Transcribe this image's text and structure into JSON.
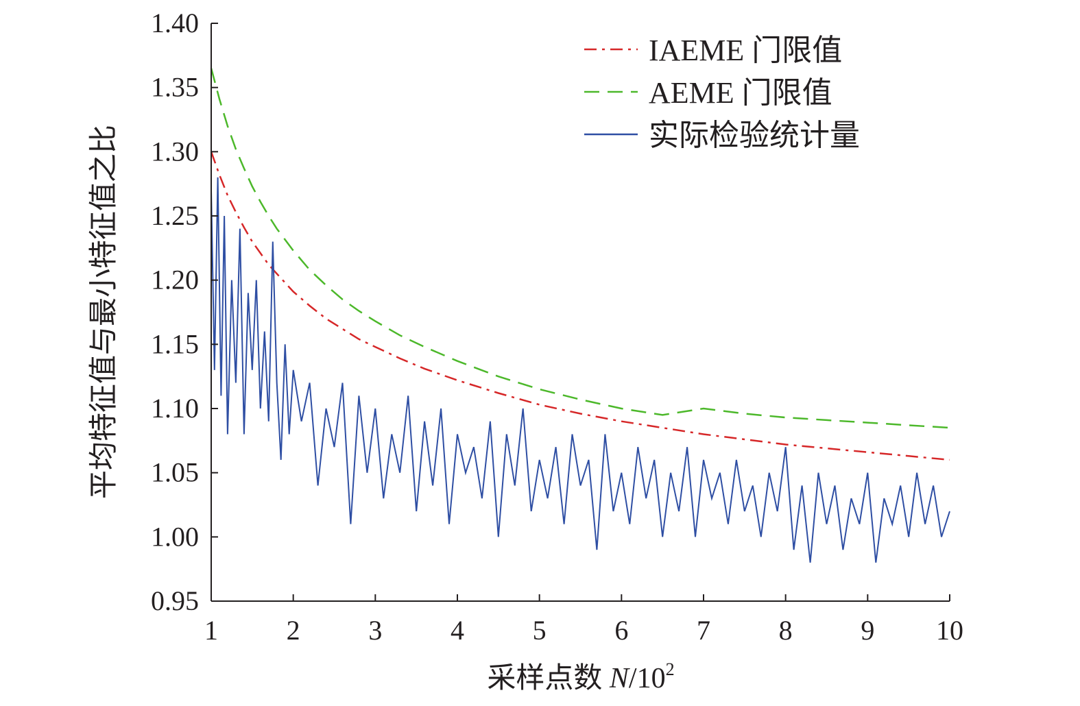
{
  "chart_data": {
    "type": "line",
    "title": "",
    "xlabel_text": "采样点数 ",
    "xlabel_var": "N",
    "xlabel_unit": "/10",
    "xlabel_exp": "2",
    "ylabel": "平均特征值与最小特征值之比",
    "xlim": [
      1,
      10
    ],
    "ylim": [
      0.95,
      1.4
    ],
    "x_ticks": [
      1,
      2,
      3,
      4,
      5,
      6,
      7,
      8,
      9,
      10
    ],
    "x_tick_labels": [
      "1",
      "2",
      "3",
      "4",
      "5",
      "6",
      "7",
      "8",
      "9",
      "10"
    ],
    "y_ticks": [
      0.95,
      1.0,
      1.05,
      1.1,
      1.15,
      1.2,
      1.25,
      1.3,
      1.35,
      1.4
    ],
    "y_tick_labels": [
      "0.95",
      "1.00",
      "1.05",
      "1.10",
      "1.15",
      "1.20",
      "1.25",
      "1.30",
      "1.35",
      "1.40"
    ],
    "grid": false,
    "legend_position": "top-right",
    "series": [
      {
        "name": "IAEME 门限值",
        "color": "#d62728",
        "style": "dash-dot",
        "x": [
          1.0,
          1.1,
          1.2,
          1.3,
          1.4,
          1.5,
          1.6,
          1.7,
          1.8,
          2.0,
          2.2,
          2.4,
          2.6,
          2.8,
          3.0,
          3.3,
          3.6,
          4.0,
          4.5,
          5.0,
          5.5,
          6.0,
          6.5,
          7.0,
          7.5,
          8.0,
          8.5,
          9.0,
          9.5,
          10.0
        ],
        "values": [
          1.3,
          1.282,
          1.266,
          1.253,
          1.241,
          1.23,
          1.221,
          1.212,
          1.205,
          1.191,
          1.18,
          1.17,
          1.162,
          1.154,
          1.148,
          1.139,
          1.131,
          1.122,
          1.112,
          1.103,
          1.096,
          1.09,
          1.085,
          1.08,
          1.076,
          1.072,
          1.069,
          1.066,
          1.063,
          1.06
        ]
      },
      {
        "name": "AEME 门限值",
        "color": "#4cb82a",
        "style": "dashed",
        "x": [
          1.0,
          1.1,
          1.2,
          1.3,
          1.4,
          1.5,
          1.6,
          1.7,
          1.8,
          2.0,
          2.2,
          2.4,
          2.6,
          2.8,
          3.0,
          3.3,
          3.6,
          4.0,
          4.5,
          5.0,
          5.5,
          6.0,
          6.5,
          7.0,
          7.5,
          8.0,
          8.5,
          9.0,
          9.5,
          10.0
        ],
        "values": [
          1.365,
          1.341,
          1.32,
          1.302,
          1.287,
          1.273,
          1.261,
          1.25,
          1.24,
          1.223,
          1.208,
          1.196,
          1.185,
          1.176,
          1.168,
          1.157,
          1.148,
          1.137,
          1.125,
          1.115,
          1.107,
          1.1,
          1.095,
          1.1,
          1.096,
          1.093,
          1.091,
          1.089,
          1.087,
          1.085
        ]
      },
      {
        "name": "实际检验统计量",
        "color": "#2e4ea3",
        "style": "solid",
        "x": [
          1.0,
          1.04,
          1.08,
          1.12,
          1.16,
          1.2,
          1.25,
          1.3,
          1.35,
          1.4,
          1.45,
          1.5,
          1.55,
          1.6,
          1.65,
          1.7,
          1.75,
          1.8,
          1.85,
          1.9,
          1.95,
          2.0,
          2.1,
          2.2,
          2.3,
          2.4,
          2.5,
          2.6,
          2.7,
          2.8,
          2.9,
          3.0,
          3.1,
          3.2,
          3.3,
          3.4,
          3.5,
          3.6,
          3.7,
          3.8,
          3.9,
          4.0,
          4.1,
          4.2,
          4.3,
          4.4,
          4.5,
          4.6,
          4.7,
          4.8,
          4.9,
          5.0,
          5.1,
          5.2,
          5.3,
          5.4,
          5.5,
          5.6,
          5.7,
          5.8,
          5.9,
          6.0,
          6.1,
          6.2,
          6.3,
          6.4,
          6.5,
          6.6,
          6.7,
          6.8,
          6.9,
          7.0,
          7.1,
          7.2,
          7.3,
          7.4,
          7.5,
          7.6,
          7.7,
          7.8,
          7.9,
          8.0,
          8.1,
          8.2,
          8.3,
          8.4,
          8.5,
          8.6,
          8.7,
          8.8,
          8.9,
          9.0,
          9.1,
          9.2,
          9.3,
          9.4,
          9.5,
          9.6,
          9.7,
          9.8,
          9.9,
          10.0
        ],
        "values": [
          1.27,
          1.13,
          1.28,
          1.11,
          1.25,
          1.08,
          1.2,
          1.12,
          1.24,
          1.08,
          1.19,
          1.13,
          1.2,
          1.1,
          1.16,
          1.09,
          1.23,
          1.12,
          1.06,
          1.15,
          1.08,
          1.13,
          1.09,
          1.12,
          1.04,
          1.1,
          1.07,
          1.12,
          1.01,
          1.11,
          1.05,
          1.1,
          1.03,
          1.08,
          1.05,
          1.11,
          1.02,
          1.09,
          1.04,
          1.1,
          1.01,
          1.08,
          1.05,
          1.07,
          1.03,
          1.09,
          1.0,
          1.08,
          1.04,
          1.1,
          1.02,
          1.06,
          1.03,
          1.07,
          1.01,
          1.08,
          1.04,
          1.06,
          0.99,
          1.08,
          1.02,
          1.05,
          1.01,
          1.07,
          1.03,
          1.06,
          1.0,
          1.05,
          1.02,
          1.07,
          1.0,
          1.06,
          1.03,
          1.05,
          1.01,
          1.06,
          1.02,
          1.04,
          1.0,
          1.05,
          1.02,
          1.07,
          0.99,
          1.04,
          0.98,
          1.05,
          1.01,
          1.04,
          0.99,
          1.03,
          1.01,
          1.05,
          0.98,
          1.03,
          1.01,
          1.04,
          1.0,
          1.05,
          1.01,
          1.04,
          1.0,
          1.02
        ]
      }
    ]
  }
}
